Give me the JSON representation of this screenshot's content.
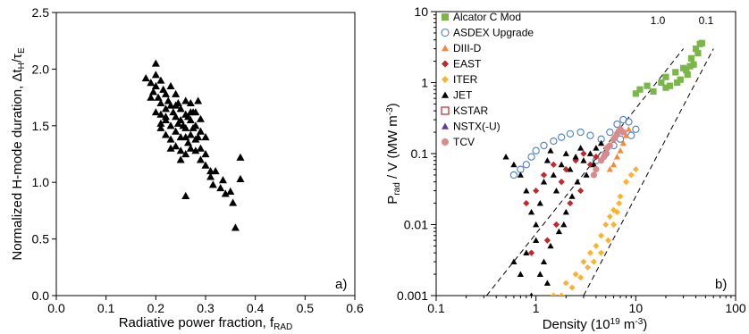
{
  "chart_data": [
    {
      "panel": "a)",
      "type": "scatter",
      "xlabel": "Radiative power fraction, f_RAD",
      "ylabel": "Normalized H-mode duration,  Δt_H/τ_E",
      "xlim": [
        0,
        0.6
      ],
      "ylim": [
        0,
        2.5
      ],
      "xticks": [
        "0.0",
        "0.1",
        "0.2",
        "0.3",
        "0.4",
        "0.5",
        "0.6"
      ],
      "yticks": [
        "0.0",
        "0.5",
        "1.0",
        "1.5",
        "2.0",
        "2.5"
      ],
      "marker": "filled-triangle",
      "color": "#000000",
      "points": [
        [
          0.18,
          1.92
        ],
        [
          0.19,
          1.88
        ],
        [
          0.195,
          1.8
        ],
        [
          0.2,
          2.05
        ],
        [
          0.2,
          1.95
        ],
        [
          0.2,
          1.85
        ],
        [
          0.205,
          1.75
        ],
        [
          0.21,
          1.9
        ],
        [
          0.21,
          1.7
        ],
        [
          0.21,
          1.6
        ],
        [
          0.215,
          1.82
        ],
        [
          0.22,
          1.78
        ],
        [
          0.22,
          1.65
        ],
        [
          0.22,
          1.55
        ],
        [
          0.225,
          1.72
        ],
        [
          0.23,
          1.85
        ],
        [
          0.23,
          1.68
        ],
        [
          0.23,
          1.5
        ],
        [
          0.235,
          1.62
        ],
        [
          0.24,
          1.78
        ],
        [
          0.24,
          1.58
        ],
        [
          0.24,
          1.45
        ],
        [
          0.245,
          1.7
        ],
        [
          0.25,
          1.65
        ],
        [
          0.25,
          1.55
        ],
        [
          0.25,
          1.4
        ],
        [
          0.255,
          1.5
        ],
        [
          0.26,
          1.72
        ],
        [
          0.26,
          1.6
        ],
        [
          0.26,
          1.48
        ],
        [
          0.265,
          1.35
        ],
        [
          0.27,
          1.7
        ],
        [
          0.27,
          1.55
        ],
        [
          0.27,
          1.42
        ],
        [
          0.275,
          1.62
        ],
        [
          0.28,
          1.5
        ],
        [
          0.28,
          1.38
        ],
        [
          0.285,
          1.72
        ],
        [
          0.29,
          1.45
        ],
        [
          0.29,
          1.3
        ],
        [
          0.3,
          1.4
        ],
        [
          0.3,
          1.25
        ],
        [
          0.21,
          1.52
        ],
        [
          0.22,
          1.42
        ],
        [
          0.23,
          1.38
        ],
        [
          0.24,
          1.32
        ],
        [
          0.25,
          1.28
        ],
        [
          0.2,
          1.62
        ],
        [
          0.19,
          1.75
        ],
        [
          0.26,
          1.4
        ],
        [
          0.27,
          1.3
        ],
        [
          0.28,
          1.28
        ],
        [
          0.29,
          1.2
        ],
        [
          0.3,
          1.15
        ],
        [
          0.31,
          1.1
        ],
        [
          0.315,
          0.98
        ],
        [
          0.32,
          1.1
        ],
        [
          0.33,
          0.95
        ],
        [
          0.335,
          1.02
        ],
        [
          0.34,
          0.9
        ],
        [
          0.35,
          0.92
        ],
        [
          0.355,
          0.82
        ],
        [
          0.36,
          0.6
        ],
        [
          0.37,
          1.22
        ],
        [
          0.37,
          1.03
        ],
        [
          0.26,
          0.88
        ],
        [
          0.31,
          1.05
        ],
        [
          0.28,
          1.62
        ],
        [
          0.24,
          1.68
        ],
        [
          0.22,
          1.58
        ],
        [
          0.21,
          1.48
        ],
        [
          0.25,
          1.2
        ],
        [
          0.26,
          1.25
        ],
        [
          0.27,
          1.62
        ],
        [
          0.29,
          1.56
        ],
        [
          0.23,
          1.3
        ],
        [
          0.285,
          1.4
        ],
        [
          0.245,
          1.52
        ],
        [
          0.275,
          1.48
        ],
        [
          0.265,
          1.58
        ]
      ]
    },
    {
      "panel": "b)",
      "type": "scatter",
      "scale": "log-log",
      "xlabel": "Density (10^19 m^-3)",
      "ylabel": "P_rad / V (MW m^-3)",
      "xlim": [
        0.1,
        100
      ],
      "ylim": [
        0.001,
        10
      ],
      "xticks": [
        "0.1",
        "1",
        "10",
        "100"
      ],
      "yticks": [
        "0.001",
        "0.01",
        "0.1",
        "1",
        "10"
      ],
      "reference_lines": [
        {
          "label": "1.0",
          "style": "dashed",
          "points": [
            [
              0.32,
              0.001
            ],
            [
              30,
              3.0
            ]
          ]
        },
        {
          "label": "0.1",
          "style": "dashed",
          "points": [
            [
              3.0,
              0.001
            ],
            [
              60,
              3.0
            ]
          ]
        }
      ],
      "series": [
        {
          "name": "Alcator C Mod",
          "marker": "square",
          "color": "#7ab648",
          "points": [
            [
              10,
              0.7
            ],
            [
              11,
              0.8
            ],
            [
              13,
              0.9
            ],
            [
              15,
              0.75
            ],
            [
              18,
              1.0
            ],
            [
              20,
              1.2
            ],
            [
              22,
              0.9
            ],
            [
              25,
              1.4
            ],
            [
              28,
              1.1
            ],
            [
              30,
              1.6
            ],
            [
              33,
              1.3
            ],
            [
              36,
              2.2
            ],
            [
              40,
              3.0
            ],
            [
              44,
              3.5
            ],
            [
              46,
              3.6
            ],
            [
              42,
              2.6
            ],
            [
              38,
              1.8
            ],
            [
              35,
              1.7
            ],
            [
              32,
              1.5
            ],
            [
              26,
              1.0
            ],
            [
              20,
              0.85
            ]
          ]
        },
        {
          "name": "ASDEX Upgrade",
          "marker": "open-circle",
          "color": "#4a7fc4",
          "points": [
            [
              0.6,
              0.05
            ],
            [
              0.7,
              0.06
            ],
            [
              0.8,
              0.07
            ],
            [
              0.9,
              0.09
            ],
            [
              1.0,
              0.11
            ],
            [
              1.2,
              0.13
            ],
            [
              1.5,
              0.15
            ],
            [
              1.8,
              0.17
            ],
            [
              2.2,
              0.19
            ],
            [
              2.8,
              0.2
            ],
            [
              3.5,
              0.18
            ],
            [
              4.5,
              0.16
            ],
            [
              5.5,
              0.2
            ],
            [
              6.5,
              0.26
            ],
            [
              7.5,
              0.3
            ],
            [
              8.5,
              0.28
            ],
            [
              10,
              0.22
            ],
            [
              9,
              0.18
            ],
            [
              7,
              0.16
            ],
            [
              6,
              0.13
            ],
            [
              5,
              0.1
            ],
            [
              4,
              0.08
            ]
          ]
        },
        {
          "name": "DIII-D",
          "marker": "triangle",
          "color": "#f48a3c",
          "points": [
            [
              5.5,
              0.06
            ],
            [
              6,
              0.07
            ],
            [
              6.5,
              0.09
            ],
            [
              7,
              0.11
            ],
            [
              7.5,
              0.14
            ],
            [
              8,
              0.18
            ],
            [
              8.5,
              0.22
            ]
          ]
        },
        {
          "name": "EAST",
          "marker": "diamond",
          "color": "#c1272d",
          "points": [
            [
              0.8,
              0.02
            ],
            [
              1.0,
              0.03
            ],
            [
              1.2,
              0.05
            ],
            [
              1.5,
              0.07
            ],
            [
              1.8,
              0.04
            ],
            [
              2.0,
              0.06
            ],
            [
              2.5,
              0.08
            ],
            [
              3.0,
              0.1
            ],
            [
              3.5,
              0.07
            ],
            [
              4.0,
              0.09
            ],
            [
              1.3,
              0.006
            ],
            [
              1.6,
              0.01
            ],
            [
              0.9,
              0.004
            ],
            [
              2.2,
              0.02
            ],
            [
              2.8,
              0.03
            ]
          ]
        },
        {
          "name": "ITER",
          "marker": "diamond",
          "color": "#f9b233",
          "points": [
            [
              1.5,
              0.001
            ],
            [
              2,
              0.0015
            ],
            [
              2.5,
              0.002
            ],
            [
              3,
              0.003
            ],
            [
              3.5,
              0.004
            ],
            [
              4,
              0.005
            ],
            [
              4.5,
              0.007
            ],
            [
              5,
              0.01
            ],
            [
              5.5,
              0.013
            ],
            [
              6,
              0.016
            ],
            [
              7,
              0.025
            ],
            [
              8,
              0.04
            ],
            [
              9,
              0.05
            ],
            [
              10,
              0.06
            ],
            [
              1.8,
              0.001
            ],
            [
              2.3,
              0.0013
            ],
            [
              2.8,
              0.0018
            ],
            [
              3.3,
              0.0025
            ],
            [
              3.8,
              0.003
            ],
            [
              4.5,
              0.004
            ],
            [
              5.3,
              0.006
            ],
            [
              6,
              0.01
            ],
            [
              6.5,
              0.015
            ],
            [
              6.8,
              0.02
            ]
          ]
        },
        {
          "name": "JET",
          "marker": "triangle",
          "color": "#000000",
          "points": [
            [
              0.6,
              0.003
            ],
            [
              0.7,
              0.002
            ],
            [
              0.8,
              0.004
            ],
            [
              0.9,
              0.001
            ],
            [
              1.0,
              0.006
            ],
            [
              1.0,
              0.01
            ],
            [
              1.1,
              0.02
            ],
            [
              1.2,
              0.04
            ],
            [
              1.3,
              0.08
            ],
            [
              1.4,
              0.11
            ],
            [
              1.5,
              0.05
            ],
            [
              1.6,
              0.03
            ],
            [
              1.8,
              0.07
            ],
            [
              2.0,
              0.1
            ],
            [
              2.2,
              0.06
            ],
            [
              2.5,
              0.09
            ],
            [
              2.8,
              0.12
            ],
            [
              3.0,
              0.08
            ],
            [
              3.5,
              0.1
            ],
            [
              4.0,
              0.12
            ],
            [
              4.5,
              0.14
            ],
            [
              5.0,
              0.11
            ],
            [
              1.2,
              0.003
            ],
            [
              1.4,
              0.005
            ],
            [
              1.7,
              0.008
            ],
            [
              2.0,
              0.015
            ],
            [
              2.3,
              0.025
            ],
            [
              2.6,
              0.04
            ],
            [
              0.5,
              0.09
            ],
            [
              0.6,
              0.07
            ],
            [
              0.7,
              0.05
            ],
            [
              0.8,
              0.03
            ],
            [
              0.9,
              0.015
            ],
            [
              1.1,
              0.002
            ],
            [
              1.3,
              0.0015
            ],
            [
              1.9,
              0.01
            ],
            [
              3.2,
              0.05
            ],
            [
              3.8,
              0.07
            ]
          ]
        },
        {
          "name": "KSTAR",
          "marker": "open-square",
          "color": "#c1272d",
          "points": []
        },
        {
          "name": "NSTX(-U)",
          "marker": "triangle",
          "color": "#5a3d99",
          "points": []
        },
        {
          "name": "TCV",
          "marker": "circle",
          "color": "#d98b8b",
          "points": [
            [
              4.0,
              0.06
            ],
            [
              4.5,
              0.08
            ],
            [
              5.0,
              0.1
            ],
            [
              5.5,
              0.13
            ],
            [
              6.0,
              0.16
            ],
            [
              6.5,
              0.19
            ],
            [
              7.0,
              0.22
            ],
            [
              7.5,
              0.2
            ],
            [
              5.2,
              0.12
            ],
            [
              4.8,
              0.09
            ],
            [
              6.8,
              0.21
            ],
            [
              6.2,
              0.17
            ],
            [
              3.8,
              0.05
            ]
          ]
        }
      ]
    }
  ]
}
